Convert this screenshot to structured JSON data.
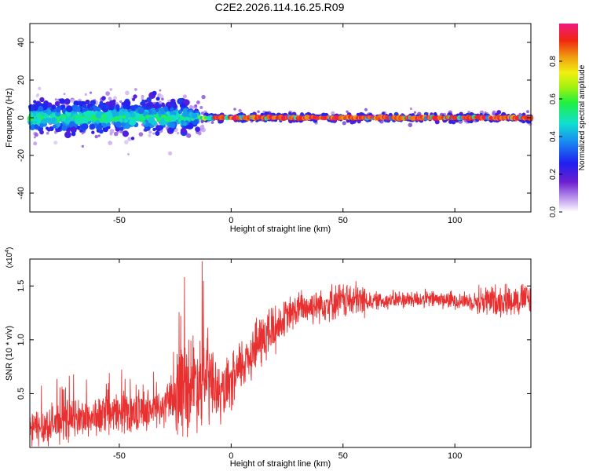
{
  "page_title": "C2E2.2026.114.16.25.R09",
  "colorbar": {
    "label": "Normalized spectral amplitude",
    "ticks": [
      "0.0",
      "0.2",
      "0.4",
      "0.6",
      "0.8"
    ],
    "tick_values": [
      0.0,
      0.2,
      0.4,
      0.6,
      0.8
    ],
    "range": [
      0,
      1
    ]
  },
  "chart_data": [
    {
      "type": "scatter",
      "title": "C2E2.2026.114.16.25.R09",
      "xlabel": "Height of straight line (km)",
      "ylabel": "Frequency (Hz)",
      "xlim": [
        -90,
        134
      ],
      "ylim": [
        -50,
        50
      ],
      "xticks": [
        -50,
        0,
        50,
        100
      ],
      "xtick_labels": [
        "-50",
        "0",
        "50",
        "100"
      ],
      "yticks": [
        -40,
        -20,
        0,
        20,
        40
      ],
      "ytick_labels": [
        "-40",
        "-20",
        "0",
        "20",
        "40"
      ],
      "description_segments": [
        {
          "x_range": [
            -90,
            -20
          ],
          "frequency_center": 1,
          "frequency_spread": 9,
          "amplitude_typical": 0.3
        },
        {
          "x_range": [
            -20,
            -10
          ],
          "frequency_center": 0,
          "frequency_spread": 5,
          "amplitude_typical": 0.35
        },
        {
          "x_range": [
            -10,
            134
          ],
          "frequency_center": 0,
          "frequency_spread": 2,
          "amplitude_typical": 0.95
        }
      ]
    },
    {
      "type": "line",
      "xlabel": "Height of straight line (km)",
      "ylabel": "SNR (10 * v/v)",
      "y_multiplier_label": "(x10",
      "y_multiplier_exp": "4",
      "y_multiplier_close": ")",
      "color": "#e83030",
      "xlim": [
        -90,
        134
      ],
      "ylim": [
        0,
        1.75
      ],
      "xticks": [
        -50,
        0,
        50,
        100
      ],
      "xtick_labels": [
        "-50",
        "0",
        "50",
        "100"
      ],
      "yticks": [
        0.5,
        1.0,
        1.5
      ],
      "ytick_labels": [
        "0.5",
        "1.0",
        "1.5"
      ],
      "series": [
        {
          "name": "SNR",
          "x": [
            -90,
            -80,
            -70,
            -60,
            -50,
            -40,
            -30,
            -25,
            -20,
            -15,
            -10,
            -5,
            0,
            5,
            10,
            15,
            20,
            25,
            30,
            40,
            50,
            60,
            70,
            80,
            90,
            100,
            110,
            120,
            125,
            134
          ],
          "values": [
            0.15,
            0.2,
            0.25,
            0.27,
            0.3,
            0.33,
            0.35,
            0.45,
            0.55,
            0.6,
            0.6,
            0.45,
            0.55,
            0.75,
            0.9,
            1.0,
            1.1,
            1.2,
            1.27,
            1.32,
            1.35,
            1.35,
            1.36,
            1.37,
            1.37,
            1.36,
            1.35,
            1.35,
            1.36,
            1.37
          ]
        }
      ]
    }
  ]
}
